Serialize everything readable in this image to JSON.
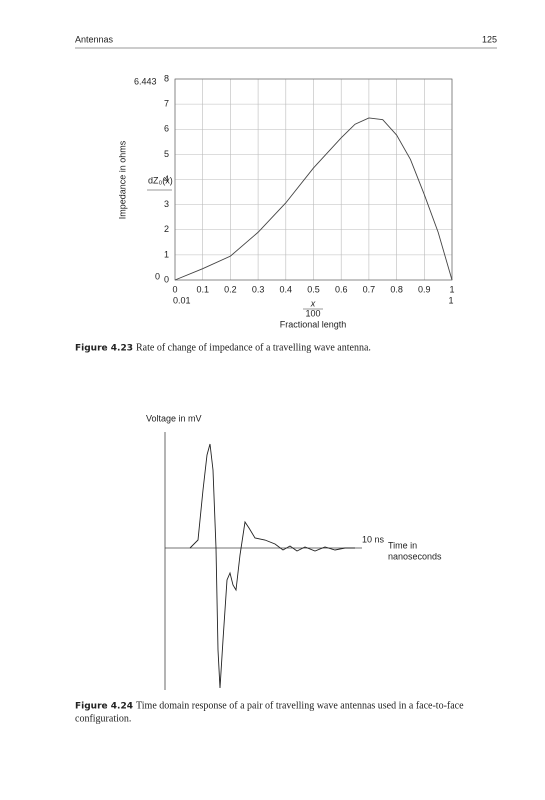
{
  "header": {
    "title": "Antennas",
    "page": "125"
  },
  "figures": [
    {
      "label": "Figure 4.23",
      "caption": "Rate of change of impedance of a travelling wave antenna."
    },
    {
      "label": "Figure 4.24",
      "caption": "Time domain response of a pair of travelling wave antennas used in a face-to-face",
      "caption_continued": "configuration."
    }
  ],
  "chart_data": [
    {
      "type": "line",
      "ylabel": "Impedance in ohms",
      "y_expression": "dZ₀(x)",
      "x_numerator": "x",
      "x_denominator": "100",
      "xlabel": "Fractional length",
      "annotations": [
        "6.443",
        "0",
        "0.01",
        "1"
      ],
      "x": [
        0,
        0.1,
        0.2,
        0.3,
        0.4,
        0.5,
        0.6,
        0.65,
        0.7,
        0.75,
        0.8,
        0.85,
        0.9,
        0.95,
        1
      ],
      "values": [
        0,
        0.45,
        0.95,
        1.9,
        3.07,
        4.46,
        5.66,
        6.2,
        6.45,
        6.38,
        5.77,
        4.8,
        3.4,
        1.9,
        0
      ],
      "color": "#444444",
      "xlim": [
        0,
        1
      ],
      "ylim": [
        0,
        8
      ],
      "xticks": [
        0,
        0.1,
        0.2,
        0.3,
        0.4,
        0.5,
        0.6,
        0.7,
        0.8,
        0.9,
        1
      ],
      "yticks": [
        0,
        1,
        2,
        3,
        4,
        5,
        6,
        7,
        8
      ],
      "grid": true
    },
    {
      "type": "line",
      "ylabel": "Voltage in mV",
      "annotation": "10 ns",
      "xlabel": [
        "Time in",
        "nanoseconds"
      ],
      "x": [
        1.25,
        1.65,
        1.9,
        2.1,
        2.25,
        2.4,
        2.55,
        2.65,
        2.75,
        2.9,
        3.1,
        3.25,
        3.4,
        3.55,
        3.75,
        4.0,
        4.2,
        4.5,
        5.0,
        5.5,
        5.9,
        6.25,
        6.6,
        7.0,
        7.5,
        8.0,
        8.5,
        9.0,
        9.5
      ],
      "values": [
        0,
        0.08,
        0.58,
        0.93,
        1.04,
        0.78,
        0,
        -1.02,
        -1.4,
        -0.92,
        -0.32,
        -0.25,
        -0.37,
        -0.42,
        -0.07,
        0.26,
        0.2,
        0.1,
        0.08,
        0.04,
        -0.02,
        0.02,
        -0.03,
        0.01,
        -0.03,
        0.01,
        -0.02,
        0,
        0
      ],
      "color": "#222222",
      "xlim": [
        0,
        10
      ],
      "ylim": [
        -1.45,
        1.45
      ],
      "grid": false
    }
  ]
}
